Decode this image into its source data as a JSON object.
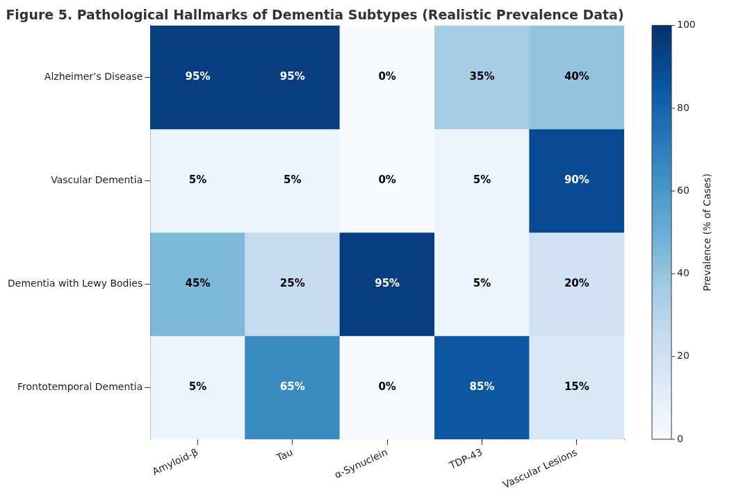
{
  "chart_data": {
    "type": "heatmap",
    "title": "Figure 5. Pathological Hallmarks of Dementia Subtypes (Realistic Prevalence Data)",
    "categories": [
      "Amyloid-β",
      "Tau",
      "α-Synuclein",
      "TDP-43",
      "Vascular Lesions"
    ],
    "y_categories": [
      "Alzheimer’s Disease",
      "Vascular Dementia",
      "Dementia with Lewy Bodies",
      "Frontotemporal Dementia"
    ],
    "cells": [
      [
        95,
        95,
        0,
        35,
        40
      ],
      [
        5,
        5,
        0,
        5,
        90
      ],
      [
        45,
        25,
        95,
        5,
        20
      ],
      [
        5,
        65,
        0,
        85,
        15
      ]
    ],
    "cell_labels": [
      [
        "95%",
        "95%",
        "0%",
        "35%",
        "40%"
      ],
      [
        "5%",
        "5%",
        "0%",
        "5%",
        "90%"
      ],
      [
        "45%",
        "25%",
        "95%",
        "5%",
        "20%"
      ],
      [
        "5%",
        "65%",
        "0%",
        "85%",
        "15%"
      ]
    ],
    "clabel": "Prevalence (% of Cases)",
    "clim": [
      0,
      100
    ],
    "cticks": [
      0,
      20,
      40,
      60,
      80,
      100
    ],
    "grid": true
  }
}
